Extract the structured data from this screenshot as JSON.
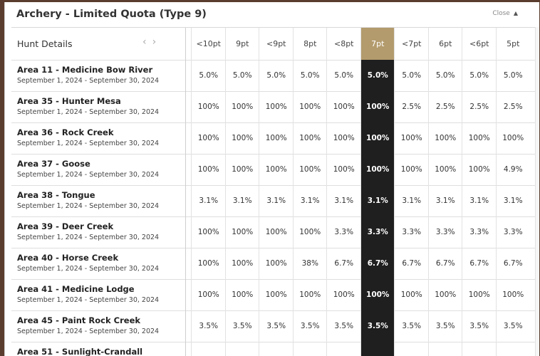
{
  "panel": {
    "title": "Archery - Limited Quota (Type 9)",
    "close_label": "Close",
    "close_icon": "▲"
  },
  "table": {
    "details_header": "Hunt Details",
    "prev_icon": "‹",
    "next_icon": "›",
    "columns": [
      "<10pt",
      "9pt",
      "<9pt",
      "8pt",
      "<8pt",
      "7pt",
      "<7pt",
      "6pt",
      "<6pt",
      "5pt"
    ],
    "highlight_column": "7pt",
    "colors": {
      "highlight_header": "#b39b6d",
      "highlight_cell": "#1f1f1f"
    },
    "rows": [
      {
        "name": "Area 11 - Medicine Bow River",
        "dates": "September 1, 2024 - September 30, 2024",
        "values": [
          "5.0%",
          "5.0%",
          "5.0%",
          "5.0%",
          "5.0%",
          "5.0%",
          "5.0%",
          "5.0%",
          "5.0%",
          "5.0%"
        ]
      },
      {
        "name": "Area 35 - Hunter Mesa",
        "dates": "September 1, 2024 - September 30, 2024",
        "values": [
          "100%",
          "100%",
          "100%",
          "100%",
          "100%",
          "100%",
          "2.5%",
          "2.5%",
          "2.5%",
          "2.5%"
        ]
      },
      {
        "name": "Area 36 - Rock Creek",
        "dates": "September 1, 2024 - September 30, 2024",
        "values": [
          "100%",
          "100%",
          "100%",
          "100%",
          "100%",
          "100%",
          "100%",
          "100%",
          "100%",
          "100%"
        ]
      },
      {
        "name": "Area 37 - Goose",
        "dates": "September 1, 2024 - September 30, 2024",
        "values": [
          "100%",
          "100%",
          "100%",
          "100%",
          "100%",
          "100%",
          "100%",
          "100%",
          "100%",
          "4.9%"
        ]
      },
      {
        "name": "Area 38 - Tongue",
        "dates": "September 1, 2024 - September 30, 2024",
        "values": [
          "3.1%",
          "3.1%",
          "3.1%",
          "3.1%",
          "3.1%",
          "3.1%",
          "3.1%",
          "3.1%",
          "3.1%",
          "3.1%"
        ]
      },
      {
        "name": "Area 39 - Deer Creek",
        "dates": "September 1, 2024 - September 30, 2024",
        "values": [
          "100%",
          "100%",
          "100%",
          "100%",
          "3.3%",
          "3.3%",
          "3.3%",
          "3.3%",
          "3.3%",
          "3.3%"
        ]
      },
      {
        "name": "Area 40 - Horse Creek",
        "dates": "September 1, 2024 - September 30, 2024",
        "values": [
          "100%",
          "100%",
          "100%",
          "38%",
          "6.7%",
          "6.7%",
          "6.7%",
          "6.7%",
          "6.7%",
          "6.7%"
        ]
      },
      {
        "name": "Area 41 - Medicine Lodge",
        "dates": "September 1, 2024 - September 30, 2024",
        "values": [
          "100%",
          "100%",
          "100%",
          "100%",
          "100%",
          "100%",
          "100%",
          "100%",
          "100%",
          "100%"
        ]
      },
      {
        "name": "Area 45 - Paint Rock Creek",
        "dates": "September 1, 2024 - September 30, 2024",
        "values": [
          "3.5%",
          "3.5%",
          "3.5%",
          "3.5%",
          "3.5%",
          "3.5%",
          "3.5%",
          "3.5%",
          "3.5%",
          "3.5%"
        ]
      },
      {
        "name": "Area 51 - Sunlight-Crandall",
        "dates": "",
        "values": [
          "",
          "",
          "",
          "",
          "",
          "",
          "",
          "",
          "",
          ""
        ]
      }
    ]
  }
}
